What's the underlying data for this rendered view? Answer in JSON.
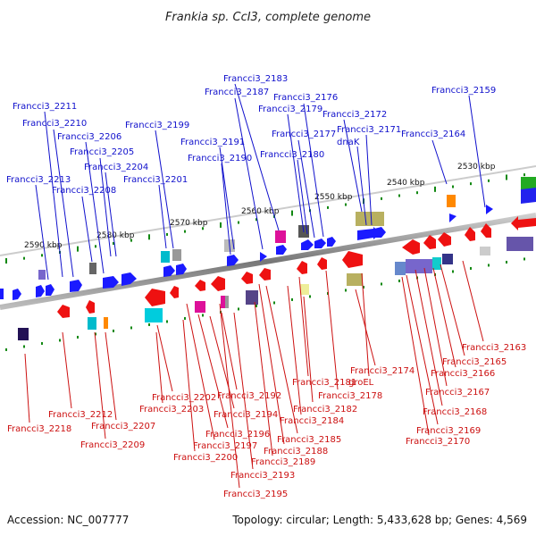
{
  "title": "Frankia sp. CcI3, complete genome",
  "accession": "Accession: NC_007777",
  "topology": "Topology: circular; Length: 5,433,628 bp; Genes: 4,569",
  "colors": {
    "forward": "#1a1aff",
    "reverse": "#ee1111",
    "forward_label": "#1010cc",
    "reverse_label": "#cc1010",
    "backbone": "#888888",
    "tick": "#118811"
  },
  "ticks": [
    "2530 kbp",
    "2540 kbp",
    "2550 kbp",
    "2560 kbp",
    "2570 kbp",
    "2580 kbp",
    "2590 kbp"
  ],
  "forward_genes": [
    "Francci3_2159",
    "Francci3_2164",
    "Francci3_2171",
    "dnaK",
    "Francci3_2172",
    "Francci3_2176",
    "Francci3_2177",
    "Francci3_2179",
    "Francci3_2180",
    "Francci3_2183",
    "Francci3_2187",
    "Francci3_2190",
    "Francci3_2191",
    "Francci3_2199",
    "Francci3_2201",
    "Francci3_2204",
    "Francci3_2205",
    "Francci3_2206",
    "Francci3_2208",
    "Francci3_2210",
    "Francci3_2211",
    "Francci3_2213"
  ],
  "reverse_genes": [
    "Francci3_2163",
    "Francci3_2165",
    "Francci3_2166",
    "Francci3_2167",
    "Francci3_2168",
    "Francci3_2169",
    "Francci3_2170",
    "Francci3_2174",
    "groEL",
    "Francci3_2178",
    "Francci3_2181",
    "Francci3_2182",
    "Francci3_2184",
    "Francci3_2185",
    "Francci3_2188",
    "Francci3_2189",
    "Francci3_2193",
    "Francci3_2195",
    "Francci3_2192",
    "Francci3_2194",
    "Francci3_2196",
    "Francci3_2197",
    "Francci3_2200",
    "Francci3_2202",
    "Francci3_2203",
    "Francci3_2207",
    "Francci3_2209",
    "Francci3_2212",
    "Francci3_2218"
  ]
}
